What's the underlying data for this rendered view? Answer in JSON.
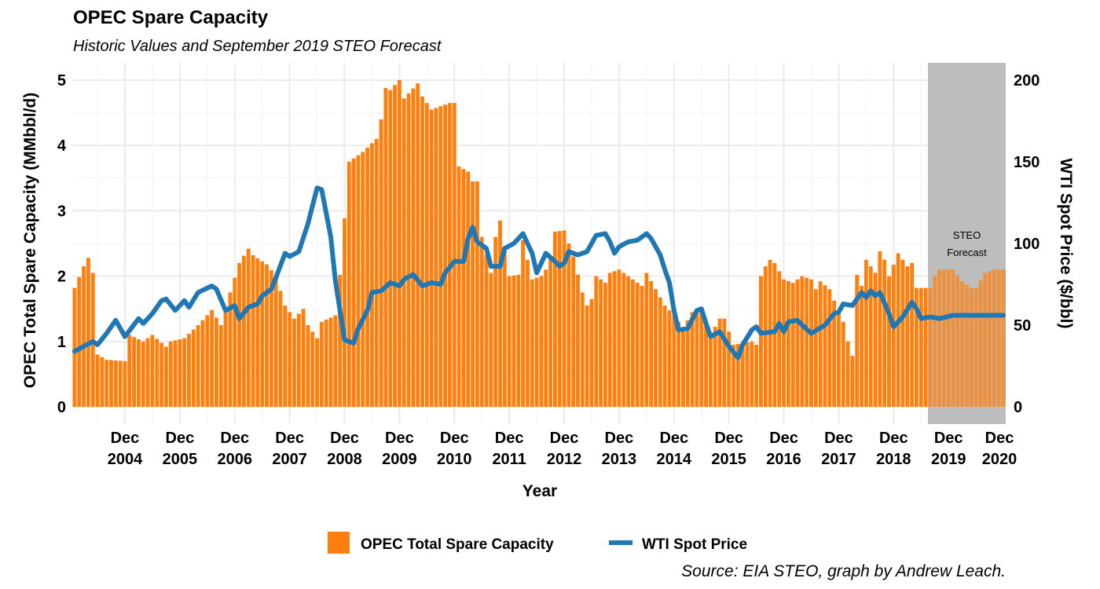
{
  "chart_data": {
    "type": "bar+line",
    "title": "OPEC Spare Capacity",
    "subtitle": "Historic Values and September 2019 STEO Forecast",
    "xlabel": "Year",
    "ylabel_left": "OPEC Total Spare Capacity (MMbbl/d)",
    "ylabel_right": "WTI Spot Price ($/bbl)",
    "ylim_left": [
      0,
      5.2
    ],
    "ylim_right": [
      0,
      208
    ],
    "yticks_left": [
      "0",
      "1",
      "2",
      "3",
      "4",
      "5"
    ],
    "yticks_right": [
      "0",
      "50",
      "100",
      "150",
      "200"
    ],
    "xtick_labels": [
      {
        "line1": "Dec",
        "line2": "2004"
      },
      {
        "line1": "Dec",
        "line2": "2005"
      },
      {
        "line1": "Dec",
        "line2": "2006"
      },
      {
        "line1": "Dec",
        "line2": "2007"
      },
      {
        "line1": "Dec",
        "line2": "2008"
      },
      {
        "line1": "Dec",
        "line2": "2009"
      },
      {
        "line1": "Dec",
        "line2": "2010"
      },
      {
        "line1": "Dec",
        "line2": "2011"
      },
      {
        "line1": "Dec",
        "line2": "2012"
      },
      {
        "line1": "Dec",
        "line2": "2013"
      },
      {
        "line1": "Dec",
        "line2": "2014"
      },
      {
        "line1": "Dec",
        "line2": "2015"
      },
      {
        "line1": "Dec",
        "line2": "2016"
      },
      {
        "line1": "Dec",
        "line2": "2017"
      },
      {
        "line1": "Dec",
        "line2": "2018"
      },
      {
        "line1": "Dec",
        "line2": "2019"
      },
      {
        "line1": "Dec",
        "line2": "2020"
      }
    ],
    "x_start": "2004-01",
    "x_end": "2020-12",
    "forecast_region": {
      "start": "2019-08",
      "end": "2020-12",
      "label_line1": "STEO",
      "label_line2": "Forecast",
      "color": "#bdbdbd"
    },
    "grid": true,
    "legend_position": "bottom",
    "series": [
      {
        "name": "OPEC Total Spare Capacity",
        "type": "bar",
        "axis": "left",
        "color": "#ff7f0e",
        "knots": [
          [
            "2004-01",
            1.82
          ],
          [
            "2004-03",
            2.15
          ],
          [
            "2004-04",
            2.28
          ],
          [
            "2004-05",
            2.05
          ],
          [
            "2004-06",
            0.8
          ],
          [
            "2004-08",
            0.72
          ],
          [
            "2004-12",
            0.7
          ],
          [
            "2005-01",
            1.1
          ],
          [
            "2005-04",
            1.0
          ],
          [
            "2005-06",
            1.1
          ],
          [
            "2005-09",
            0.92
          ],
          [
            "2005-10",
            1.0
          ],
          [
            "2006-01",
            1.05
          ],
          [
            "2006-04",
            1.25
          ],
          [
            "2006-07",
            1.48
          ],
          [
            "2006-09",
            1.25
          ],
          [
            "2006-11",
            1.75
          ],
          [
            "2007-01",
            2.2
          ],
          [
            "2007-03",
            2.42
          ],
          [
            "2007-04",
            2.32
          ],
          [
            "2007-07",
            2.18
          ],
          [
            "2007-09",
            2.0
          ],
          [
            "2007-11",
            1.55
          ],
          [
            "2008-01",
            1.35
          ],
          [
            "2008-03",
            1.5
          ],
          [
            "2008-04",
            1.25
          ],
          [
            "2008-06",
            1.05
          ],
          [
            "2008-07",
            1.3
          ],
          [
            "2008-10",
            1.4
          ],
          [
            "2008-11",
            2.02
          ],
          [
            "2009-01",
            3.75
          ],
          [
            "2009-04",
            3.9
          ],
          [
            "2009-07",
            4.1
          ],
          [
            "2009-08",
            4.4
          ],
          [
            "2009-09",
            4.88
          ],
          [
            "2009-10",
            4.85
          ],
          [
            "2009-12",
            5.0
          ],
          [
            "2010-01",
            4.72
          ],
          [
            "2010-04",
            4.95
          ],
          [
            "2010-05",
            4.75
          ],
          [
            "2010-07",
            4.55
          ],
          [
            "2010-09",
            4.6
          ],
          [
            "2010-11",
            4.65
          ],
          [
            "2010-12",
            4.65
          ],
          [
            "2011-01",
            3.68
          ],
          [
            "2011-03",
            3.6
          ],
          [
            "2011-04",
            3.45
          ],
          [
            "2011-05",
            3.45
          ],
          [
            "2011-06",
            2.6
          ],
          [
            "2011-08",
            2.05
          ],
          [
            "2011-09",
            2.6
          ],
          [
            "2011-10",
            2.85
          ],
          [
            "2011-12",
            2.0
          ],
          [
            "2012-02",
            2.02
          ],
          [
            "2012-03",
            2.55
          ],
          [
            "2012-05",
            1.95
          ],
          [
            "2012-07",
            2.0
          ],
          [
            "2012-08",
            2.1
          ],
          [
            "2012-09",
            2.3
          ],
          [
            "2012-10",
            2.68
          ],
          [
            "2012-12",
            2.7
          ],
          [
            "2013-02",
            2.3
          ],
          [
            "2013-04",
            1.75
          ],
          [
            "2013-05",
            1.55
          ],
          [
            "2013-06",
            1.65
          ],
          [
            "2013-07",
            2.0
          ],
          [
            "2013-09",
            1.9
          ],
          [
            "2013-10",
            2.05
          ],
          [
            "2013-12",
            2.1
          ],
          [
            "2014-03",
            1.95
          ],
          [
            "2014-05",
            1.85
          ],
          [
            "2014-06",
            2.05
          ],
          [
            "2014-08",
            1.8
          ],
          [
            "2014-10",
            1.55
          ],
          [
            "2014-12",
            1.4
          ],
          [
            "2015-02",
            1.2
          ],
          [
            "2015-04",
            1.45
          ],
          [
            "2015-06",
            1.45
          ],
          [
            "2015-08",
            1.1
          ],
          [
            "2015-10",
            1.35
          ],
          [
            "2015-11",
            1.35
          ],
          [
            "2016-01",
            0.95
          ],
          [
            "2016-05",
            1.0
          ],
          [
            "2016-06",
            0.95
          ],
          [
            "2016-07",
            2.0
          ],
          [
            "2016-08",
            2.15
          ],
          [
            "2016-09",
            2.25
          ],
          [
            "2016-10",
            2.2
          ],
          [
            "2016-12",
            1.95
          ],
          [
            "2017-02",
            1.9
          ],
          [
            "2017-04",
            2.0
          ],
          [
            "2017-06",
            1.95
          ],
          [
            "2017-07",
            1.8
          ],
          [
            "2017-08",
            1.92
          ],
          [
            "2017-10",
            1.8
          ],
          [
            "2017-12",
            1.45
          ],
          [
            "2018-01",
            1.3
          ],
          [
            "2018-02",
            1.0
          ],
          [
            "2018-03",
            0.78
          ],
          [
            "2018-04",
            2.02
          ],
          [
            "2018-05",
            1.85
          ],
          [
            "2018-06",
            2.25
          ],
          [
            "2018-08",
            2.05
          ],
          [
            "2018-09",
            2.38
          ],
          [
            "2018-10",
            2.25
          ],
          [
            "2018-11",
            2.0
          ],
          [
            "2019-01",
            2.35
          ],
          [
            "2019-03",
            2.15
          ],
          [
            "2019-04",
            2.2
          ],
          [
            "2019-05",
            1.82
          ],
          [
            "2019-08",
            1.82
          ],
          [
            "2019-09",
            2.0
          ],
          [
            "2019-10",
            2.1
          ],
          [
            "2020-01",
            2.1
          ],
          [
            "2020-03",
            1.92
          ],
          [
            "2020-05",
            1.82
          ],
          [
            "2020-06",
            1.82
          ],
          [
            "2020-08",
            2.05
          ],
          [
            "2020-10",
            2.1
          ],
          [
            "2020-12",
            2.1
          ]
        ]
      },
      {
        "name": "WTI Spot Price",
        "type": "line",
        "axis": "right",
        "color": "#1f77b4",
        "knots": [
          [
            "2004-01",
            34
          ],
          [
            "2004-03",
            37
          ],
          [
            "2004-05",
            40
          ],
          [
            "2004-06",
            38
          ],
          [
            "2004-08",
            45
          ],
          [
            "2004-10",
            53
          ],
          [
            "2004-12",
            43
          ],
          [
            "2005-03",
            54
          ],
          [
            "2005-04",
            51
          ],
          [
            "2005-06",
            57
          ],
          [
            "2005-08",
            65
          ],
          [
            "2005-09",
            66
          ],
          [
            "2005-11",
            59
          ],
          [
            "2006-01",
            65
          ],
          [
            "2006-02",
            61
          ],
          [
            "2006-04",
            70
          ],
          [
            "2006-07",
            74
          ],
          [
            "2006-08",
            72
          ],
          [
            "2006-10",
            59
          ],
          [
            "2006-12",
            62
          ],
          [
            "2007-01",
            54
          ],
          [
            "2007-03",
            61
          ],
          [
            "2007-05",
            63
          ],
          [
            "2007-06",
            68
          ],
          [
            "2007-08",
            72
          ],
          [
            "2007-09",
            79
          ],
          [
            "2007-11",
            94
          ],
          [
            "2007-12",
            92
          ],
          [
            "2008-02",
            95
          ],
          [
            "2008-04",
            112
          ],
          [
            "2008-06",
            134
          ],
          [
            "2008-07",
            133
          ],
          [
            "2008-09",
            104
          ],
          [
            "2008-10",
            77
          ],
          [
            "2008-12",
            41
          ],
          [
            "2009-02",
            39
          ],
          [
            "2009-03",
            48
          ],
          [
            "2009-05",
            59
          ],
          [
            "2009-06",
            70
          ],
          [
            "2009-08",
            71
          ],
          [
            "2009-10",
            76
          ],
          [
            "2009-12",
            74
          ],
          [
            "2010-01",
            78
          ],
          [
            "2010-03",
            81
          ],
          [
            "2010-05",
            74
          ],
          [
            "2010-07",
            76
          ],
          [
            "2010-09",
            75
          ],
          [
            "2010-10",
            82
          ],
          [
            "2010-12",
            89
          ],
          [
            "2011-02",
            89
          ],
          [
            "2011-03",
            103
          ],
          [
            "2011-04",
            110
          ],
          [
            "2011-05",
            101
          ],
          [
            "2011-07",
            97
          ],
          [
            "2011-08",
            86
          ],
          [
            "2011-10",
            86
          ],
          [
            "2011-11",
            97
          ],
          [
            "2012-01",
            100
          ],
          [
            "2012-03",
            106
          ],
          [
            "2012-05",
            94
          ],
          [
            "2012-06",
            82
          ],
          [
            "2012-07",
            88
          ],
          [
            "2012-08",
            94
          ],
          [
            "2012-10",
            89
          ],
          [
            "2012-11",
            86
          ],
          [
            "2012-12",
            88
          ],
          [
            "2013-01",
            95
          ],
          [
            "2013-03",
            93
          ],
          [
            "2013-05",
            95
          ],
          [
            "2013-07",
            105
          ],
          [
            "2013-09",
            106
          ],
          [
            "2013-10",
            101
          ],
          [
            "2013-11",
            94
          ],
          [
            "2013-12",
            98
          ],
          [
            "2014-02",
            101
          ],
          [
            "2014-04",
            102
          ],
          [
            "2014-06",
            106
          ],
          [
            "2014-07",
            103
          ],
          [
            "2014-09",
            93
          ],
          [
            "2014-10",
            84
          ],
          [
            "2014-11",
            76
          ],
          [
            "2014-12",
            59
          ],
          [
            "2015-01",
            47
          ],
          [
            "2015-03",
            48
          ],
          [
            "2015-05",
            59
          ],
          [
            "2015-06",
            60
          ],
          [
            "2015-07",
            51
          ],
          [
            "2015-08",
            43
          ],
          [
            "2015-10",
            46
          ],
          [
            "2015-12",
            37
          ],
          [
            "2016-02",
            30
          ],
          [
            "2016-03",
            38
          ],
          [
            "2016-05",
            47
          ],
          [
            "2016-06",
            49
          ],
          [
            "2016-07",
            45
          ],
          [
            "2016-10",
            46
          ],
          [
            "2016-11",
            51
          ],
          [
            "2016-12",
            46
          ],
          [
            "2017-01",
            52
          ],
          [
            "2017-03",
            53
          ],
          [
            "2017-04",
            50
          ],
          [
            "2017-06",
            45
          ],
          [
            "2017-09",
            50
          ],
          [
            "2017-11",
            57
          ],
          [
            "2017-12",
            58
          ],
          [
            "2018-01",
            63
          ],
          [
            "2018-03",
            62
          ],
          [
            "2018-05",
            70
          ],
          [
            "2018-06",
            67
          ],
          [
            "2018-07",
            71
          ],
          [
            "2018-08",
            68
          ],
          [
            "2018-09",
            70
          ],
          [
            "2018-11",
            57
          ],
          [
            "2018-12",
            49
          ],
          [
            "2019-02",
            55
          ],
          [
            "2019-04",
            64
          ],
          [
            "2019-05",
            60
          ],
          [
            "2019-06",
            54
          ],
          [
            "2019-08",
            55
          ],
          [
            "2019-10",
            54
          ],
          [
            "2020-01",
            56
          ],
          [
            "2020-12",
            56
          ]
        ]
      }
    ]
  },
  "legend": {
    "bar_label": "OPEC Total Spare Capacity",
    "line_label": "WTI Spot Price"
  },
  "caption": "Source: EIA STEO, graph by Andrew Leach."
}
